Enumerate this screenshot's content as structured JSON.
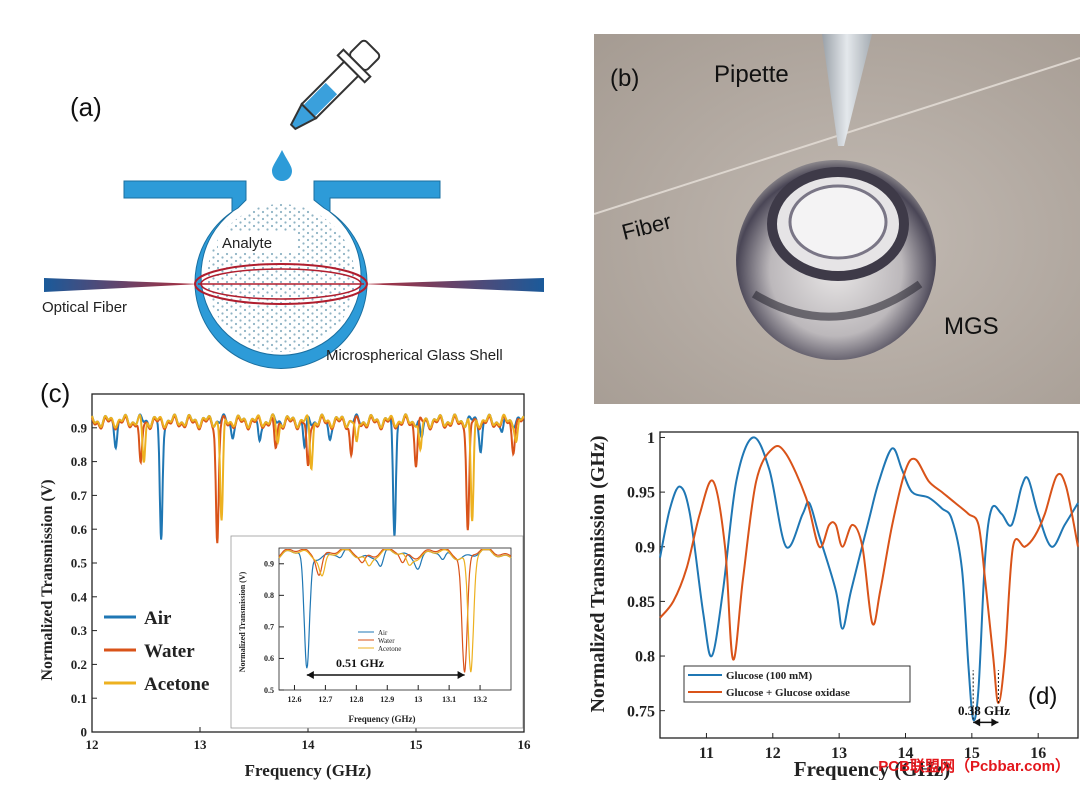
{
  "panel_a": {
    "letter": "(a)",
    "label_analyte": "Analyte",
    "label_fiber": "Optical Fiber",
    "label_shell": "Microspherical Glass Shell"
  },
  "panel_b": {
    "letter": "(b)",
    "label_pipette": "Pipette",
    "label_fiber": "Fiber",
    "label_mgs": "MGS"
  },
  "watermark": "PCB联盟网（Pcbbar.com）",
  "chart_data": [
    {
      "id": "c",
      "type": "line",
      "panel_letter": "(c)",
      "xlabel": "Frequency (GHz)",
      "ylabel": "Normalized Transmission (V)",
      "xlim": [
        12,
        16
      ],
      "ylim": [
        0,
        1
      ],
      "xticks": [
        "12",
        "13",
        "14",
        "15",
        "16"
      ],
      "yticks": [
        "0",
        "0.1",
        "0.2",
        "0.3",
        "0.4",
        "0.5",
        "0.6",
        "0.7",
        "0.8",
        "0.9"
      ],
      "legend_position": "bottom-left",
      "series": [
        {
          "name": "Air",
          "color": "#1f77b4",
          "baseline": 0.92,
          "dips": [
            [
              12.22,
              0.86
            ],
            [
              12.64,
              0.56
            ],
            [
              13.3,
              0.88
            ],
            [
              13.55,
              0.85
            ],
            [
              13.97,
              0.84
            ],
            [
              14.2,
              0.87
            ],
            [
              14.8,
              0.59
            ],
            [
              15.05,
              0.86
            ],
            [
              15.6,
              0.84
            ],
            [
              15.8,
              0.88
            ]
          ]
        },
        {
          "name": "Water",
          "color": "#d95319",
          "baseline": 0.915,
          "dips": [
            [
              12.45,
              0.78
            ],
            [
              13.16,
              0.56
            ],
            [
              13.7,
              0.84
            ],
            [
              14.0,
              0.77
            ],
            [
              14.4,
              0.82
            ],
            [
              15.0,
              0.8
            ],
            [
              15.48,
              0.59
            ],
            [
              15.9,
              0.84
            ]
          ]
        },
        {
          "name": "Acetone",
          "color": "#edb120",
          "baseline": 0.92,
          "dips": [
            [
              12.48,
              0.8
            ],
            [
              13.2,
              0.62
            ],
            [
              13.72,
              0.86
            ],
            [
              14.03,
              0.79
            ],
            [
              14.45,
              0.84
            ],
            [
              15.04,
              0.82
            ],
            [
              15.52,
              0.62
            ],
            [
              15.93,
              0.86
            ]
          ]
        }
      ],
      "inset": {
        "xlabel": "Frequency (GHz)",
        "ylabel": "Normalized Transmission (V)",
        "xlim": [
          12.55,
          13.3
        ],
        "ylim": [
          0.5,
          0.95
        ],
        "xticks": [
          "12.6",
          "12.7",
          "12.8",
          "12.9",
          "13",
          "13.1",
          "13.2"
        ],
        "yticks": [
          "0.5",
          "0.6",
          "0.7",
          "0.8",
          "0.9"
        ],
        "annotation": "0.51 GHz",
        "annotation_span": [
          12.64,
          13.15
        ],
        "series": [
          {
            "name": "Air",
            "color": "#1f77b4",
            "baseline": 0.93,
            "dips": [
              [
                12.64,
                0.56
              ],
              [
                12.75,
                0.91
              ],
              [
                12.88,
                0.89
              ],
              [
                13.0,
                0.9
              ],
              [
                13.08,
                0.9
              ]
            ]
          },
          {
            "name": "Water",
            "color": "#d95319",
            "baseline": 0.935,
            "dips": [
              [
                12.68,
                0.88
              ],
              [
                12.82,
                0.91
              ],
              [
                12.95,
                0.9
              ],
              [
                13.15,
                0.56
              ]
            ]
          },
          {
            "name": "Acetone",
            "color": "#edb120",
            "baseline": 0.93,
            "dips": [
              [
                12.69,
                0.87
              ],
              [
                12.84,
                0.9
              ],
              [
                12.97,
                0.9
              ],
              [
                13.17,
                0.56
              ]
            ]
          }
        ]
      }
    },
    {
      "id": "d",
      "type": "line",
      "panel_letter": "(d)",
      "xlabel": "Frequency (GHz)",
      "ylabel": "Normalized Transmission (GHz)",
      "xlim": [
        10.3,
        16.6
      ],
      "ylim": [
        0.725,
        1.005
      ],
      "xticks": [
        "11",
        "12",
        "13",
        "14",
        "15",
        "16"
      ],
      "yticks": [
        "0.75",
        "0.8",
        "0.85",
        "0.9",
        "0.95",
        "1"
      ],
      "legend_position": "bottom-left",
      "annotation": "0.38 GHz",
      "annotation_span": [
        15.02,
        15.4
      ],
      "series": [
        {
          "name": "Glucose (100 mM)",
          "color": "#1f77b4",
          "points": [
            [
              10.3,
              0.89
            ],
            [
              10.45,
              0.935
            ],
            [
              10.6,
              0.955
            ],
            [
              10.75,
              0.93
            ],
            [
              10.95,
              0.84
            ],
            [
              11.08,
              0.8
            ],
            [
              11.25,
              0.86
            ],
            [
              11.45,
              0.96
            ],
            [
              11.7,
              1.0
            ],
            [
              11.95,
              0.97
            ],
            [
              12.2,
              0.9
            ],
            [
              12.45,
              0.93
            ],
            [
              12.55,
              0.94
            ],
            [
              12.7,
              0.91
            ],
            [
              12.95,
              0.86
            ],
            [
              13.05,
              0.825
            ],
            [
              13.18,
              0.86
            ],
            [
              13.45,
              0.925
            ],
            [
              13.6,
              0.96
            ],
            [
              13.8,
              0.99
            ],
            [
              13.95,
              0.97
            ],
            [
              14.1,
              0.95
            ],
            [
              14.35,
              0.945
            ],
            [
              14.55,
              0.935
            ],
            [
              14.7,
              0.925
            ],
            [
              14.85,
              0.88
            ],
            [
              14.95,
              0.79
            ],
            [
              15.02,
              0.742
            ],
            [
              15.1,
              0.77
            ],
            [
              15.2,
              0.89
            ],
            [
              15.3,
              0.935
            ],
            [
              15.45,
              0.93
            ],
            [
              15.6,
              0.92
            ],
            [
              15.75,
              0.955
            ],
            [
              15.85,
              0.962
            ],
            [
              16.0,
              0.93
            ],
            [
              16.2,
              0.9
            ],
            [
              16.4,
              0.92
            ],
            [
              16.6,
              0.94
            ]
          ]
        },
        {
          "name": "Glucose + Glucose oxidase",
          "color": "#d95319",
          "points": [
            [
              10.3,
              0.835
            ],
            [
              10.5,
              0.85
            ],
            [
              10.7,
              0.88
            ],
            [
              10.9,
              0.93
            ],
            [
              11.1,
              0.96
            ],
            [
              11.28,
              0.9
            ],
            [
              11.4,
              0.797
            ],
            [
              11.55,
              0.87
            ],
            [
              11.75,
              0.96
            ],
            [
              12.0,
              0.99
            ],
            [
              12.2,
              0.985
            ],
            [
              12.5,
              0.945
            ],
            [
              12.7,
              0.9
            ],
            [
              12.85,
              0.92
            ],
            [
              12.95,
              0.92
            ],
            [
              13.05,
              0.9
            ],
            [
              13.2,
              0.92
            ],
            [
              13.35,
              0.9
            ],
            [
              13.5,
              0.83
            ],
            [
              13.62,
              0.86
            ],
            [
              13.8,
              0.92
            ],
            [
              14.0,
              0.97
            ],
            [
              14.15,
              0.98
            ],
            [
              14.35,
              0.96
            ],
            [
              14.55,
              0.95
            ],
            [
              14.75,
              0.94
            ],
            [
              14.95,
              0.93
            ],
            [
              15.1,
              0.92
            ],
            [
              15.2,
              0.87
            ],
            [
              15.32,
              0.8
            ],
            [
              15.4,
              0.757
            ],
            [
              15.5,
              0.8
            ],
            [
              15.62,
              0.9
            ],
            [
              15.8,
              0.9
            ],
            [
              15.95,
              0.91
            ],
            [
              16.1,
              0.93
            ],
            [
              16.28,
              0.965
            ],
            [
              16.42,
              0.955
            ],
            [
              16.6,
              0.9
            ]
          ]
        }
      ]
    }
  ]
}
